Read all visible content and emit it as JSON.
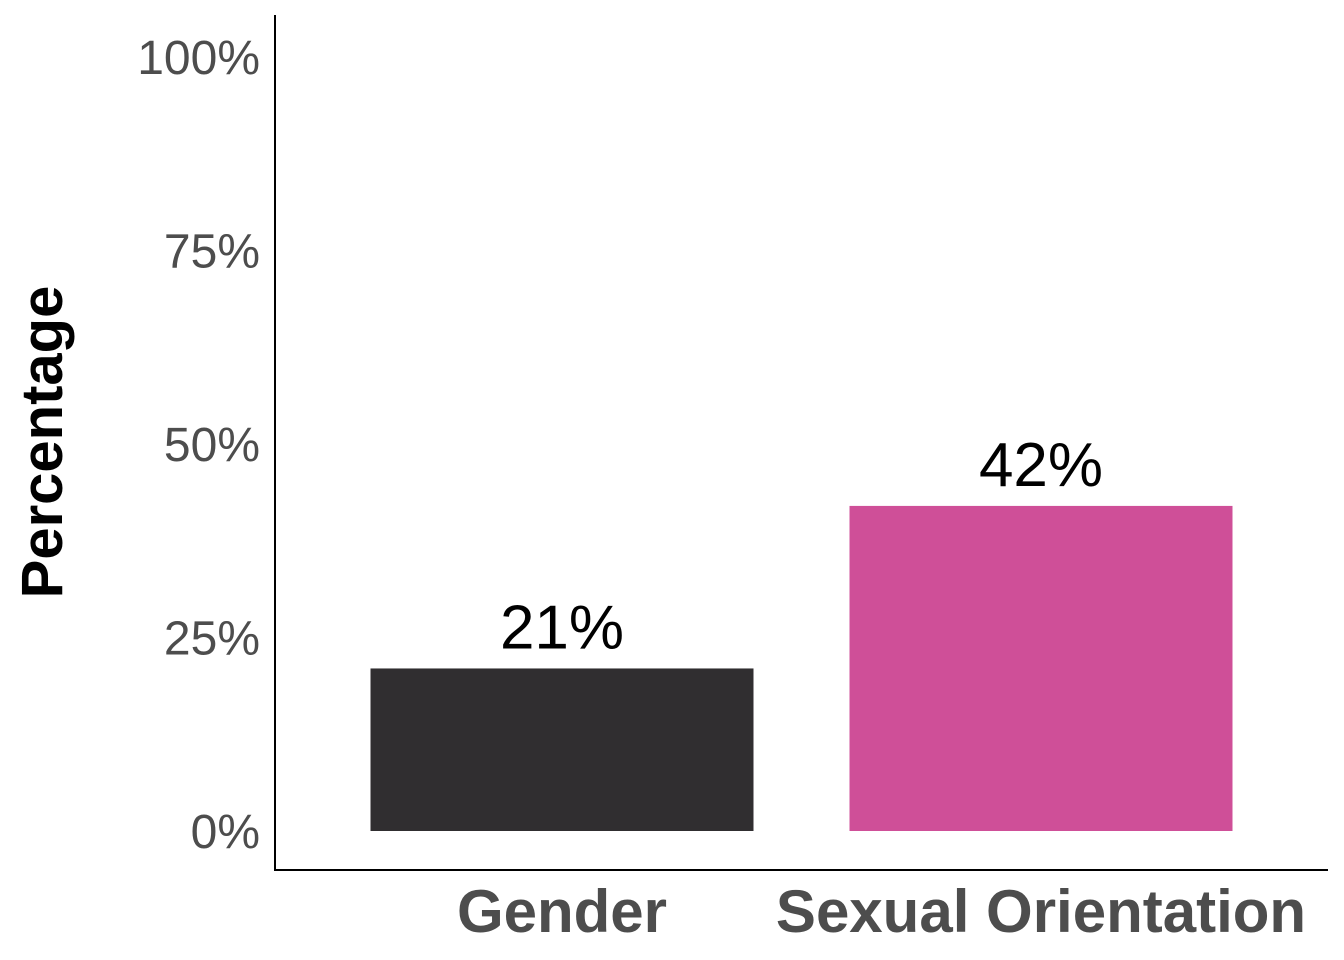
{
  "chart_data": {
    "type": "bar",
    "title": "",
    "xlabel": "",
    "ylabel": "Percentage",
    "categories": [
      "Gender",
      "Sexual Orientation"
    ],
    "values": [
      21,
      42
    ],
    "data_labels": [
      "21%",
      "42%"
    ],
    "colors": [
      "#302e30",
      "#cf4f98"
    ],
    "ylim": [
      0,
      100
    ],
    "yticks": [
      0,
      25,
      50,
      75,
      100
    ],
    "ytick_labels": [
      "0%",
      "25%",
      "50%",
      "75%",
      "100%"
    ],
    "grid": false,
    "legend": "none"
  }
}
